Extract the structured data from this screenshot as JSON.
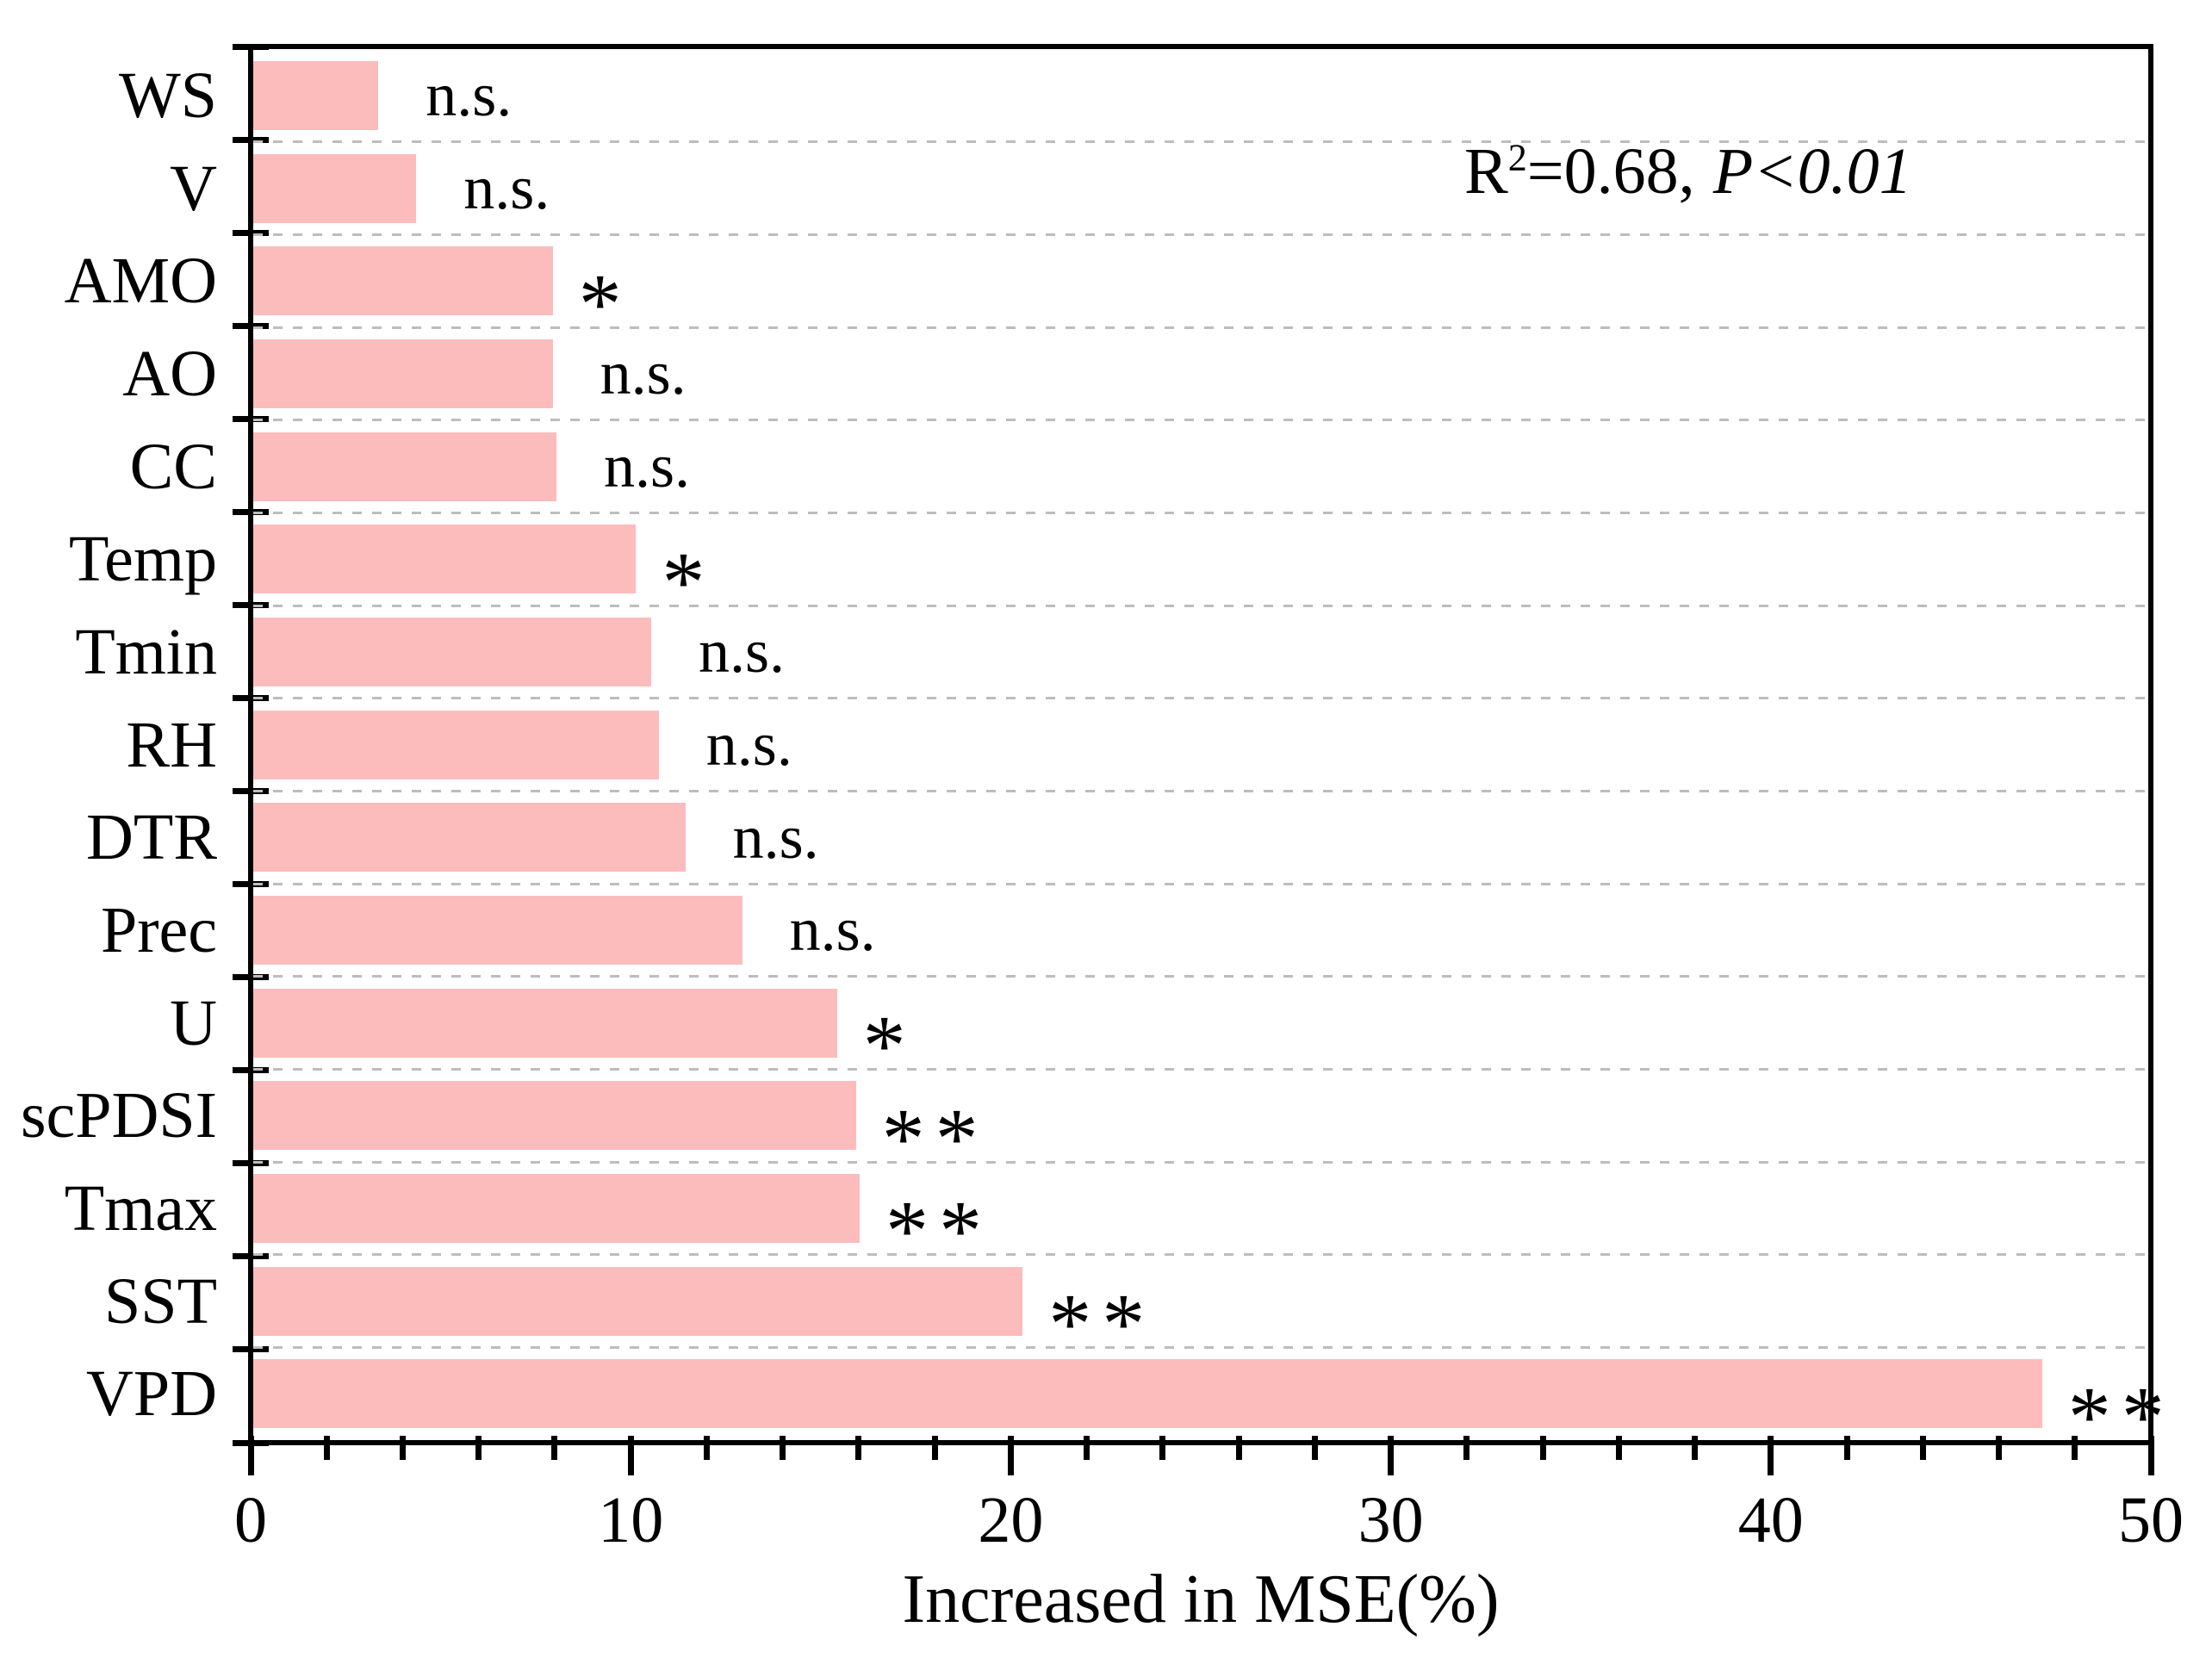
{
  "annotation": {
    "r_symbol": "R",
    "r_exponent": "2",
    "equals_value": "=0.68,",
    "p_value": "P<0.01"
  },
  "chart_data": {
    "type": "bar",
    "orientation": "horizontal",
    "title": "",
    "xlabel": "Increased in MSE(%)",
    "ylabel": "",
    "xlim": [
      0,
      50
    ],
    "x_major_ticks": [
      0,
      10,
      20,
      30,
      40,
      50
    ],
    "x_minor_tick_step": 2,
    "grid": "horizontal-dashed",
    "legend": "none",
    "bar_color": "#FCBCBC",
    "axis_color": "#000000",
    "gridline_color": "#bdbdbd",
    "annotation_text": "R²=0.68, P<0.01",
    "categories": [
      "WS",
      "V",
      "AMO",
      "AO",
      "CC",
      "Temp",
      "Tmin",
      "RH",
      "DTR",
      "Prec",
      "U",
      "scPDSI",
      "Tmax",
      "SST",
      "VPD"
    ],
    "values": [
      3.3,
      4.3,
      7.9,
      7.9,
      8.0,
      10.1,
      10.5,
      10.7,
      11.4,
      12.9,
      15.4,
      15.9,
      16.0,
      20.3,
      47.2
    ],
    "significance": [
      "n.s.",
      "n.s.",
      "*",
      "n.s.",
      "n.s.",
      "*",
      "n.s.",
      "n.s.",
      "n.s.",
      "n.s.",
      "*",
      "**",
      "**",
      "**",
      "**"
    ]
  }
}
